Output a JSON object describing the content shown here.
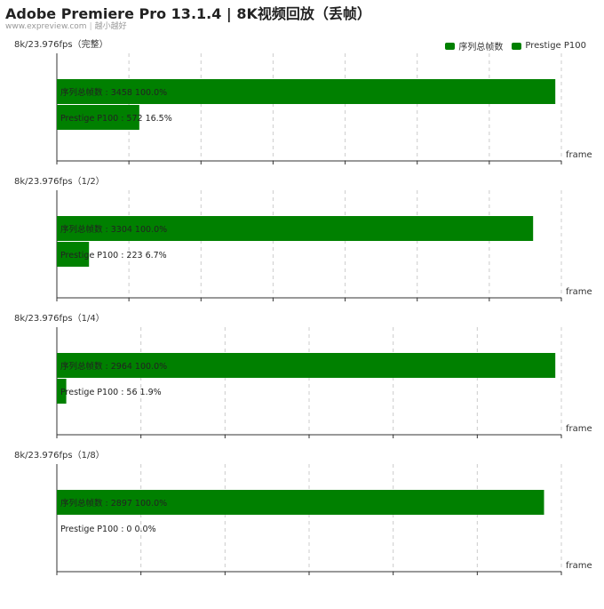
{
  "header": {
    "title": "Adobe Premiere Pro 13.1.4 | 8K视频回放（丢帧）",
    "site": "www.expreview.com",
    "author": "越小越好"
  },
  "legend": [
    {
      "label": "序列总帧数",
      "color": "#008000"
    },
    {
      "label": "Prestige P100",
      "color": "#008000"
    }
  ],
  "colors": {
    "bar": "#008000",
    "axis": "#333333",
    "grid": "#cccccc"
  },
  "chart_data": [
    {
      "type": "bar",
      "orientation": "horizontal",
      "title": "8k/23.976fps（完整）",
      "xlabel": "frame",
      "xlim": [
        0,
        3500
      ],
      "ticks": [
        0,
        500,
        1000,
        1500,
        2000,
        2500,
        3000,
        3500
      ],
      "tick_labels": [
        "0",
        "500",
        "1,000",
        "1,500",
        "2,000",
        "2,500",
        "3,000",
        "3,500"
      ],
      "bars": [
        {
          "name": "序列总帧数",
          "value": 3458,
          "pct": "100.0%",
          "label": "序列总帧数 : 3458  100.0%"
        },
        {
          "name": "Prestige P100",
          "value": 572,
          "pct": "16.5%",
          "label": "Prestige P100 : 572  16.5%"
        }
      ]
    },
    {
      "type": "bar",
      "orientation": "horizontal",
      "title": "8k/23.976fps（1/2）",
      "xlabel": "frame",
      "xlim": [
        0,
        3500
      ],
      "ticks": [
        0,
        500,
        1000,
        1500,
        2000,
        2500,
        3000,
        3500
      ],
      "tick_labels": [
        "0",
        "500",
        "1,000",
        "1,500",
        "2,000",
        "2,500",
        "3,000",
        "3,500"
      ],
      "bars": [
        {
          "name": "序列总帧数",
          "value": 3304,
          "pct": "100.0%",
          "label": "序列总帧数 : 3304  100.0%"
        },
        {
          "name": "Prestige P100",
          "value": 223,
          "pct": "6.7%",
          "label": "Prestige P100 : 223  6.7%"
        }
      ]
    },
    {
      "type": "bar",
      "orientation": "horizontal",
      "title": "8k/23.976fps（1/4）",
      "xlabel": "frame",
      "xlim": [
        0,
        3000
      ],
      "ticks": [
        0,
        500,
        1000,
        1500,
        2000,
        2500,
        3000
      ],
      "tick_labels": [
        "0",
        "500",
        "1,000",
        "1,500",
        "2,000",
        "2,500",
        "3,000"
      ],
      "bars": [
        {
          "name": "序列总帧数",
          "value": 2964,
          "pct": "100.0%",
          "label": "序列总帧数 : 2964  100.0%"
        },
        {
          "name": "Prestige P100",
          "value": 56,
          "pct": "1.9%",
          "label": "Prestige P100 : 56  1.9%"
        }
      ]
    },
    {
      "type": "bar",
      "orientation": "horizontal",
      "title": "8k/23.976fps（1/8）",
      "xlabel": "frame",
      "xlim": [
        0,
        3000
      ],
      "ticks": [
        0,
        500,
        1000,
        1500,
        2000,
        2500,
        3000
      ],
      "tick_labels": [
        "0",
        "500",
        "1,000",
        "1,500",
        "2,000",
        "2,500",
        "3,000"
      ],
      "bars": [
        {
          "name": "序列总帧数",
          "value": 2897,
          "pct": "100.0%",
          "label": "序列总帧数 : 2897  100.0%"
        },
        {
          "name": "Prestige P100",
          "value": 0,
          "pct": "0.0%",
          "label": "Prestige P100 : 0  0.0%"
        }
      ]
    }
  ]
}
